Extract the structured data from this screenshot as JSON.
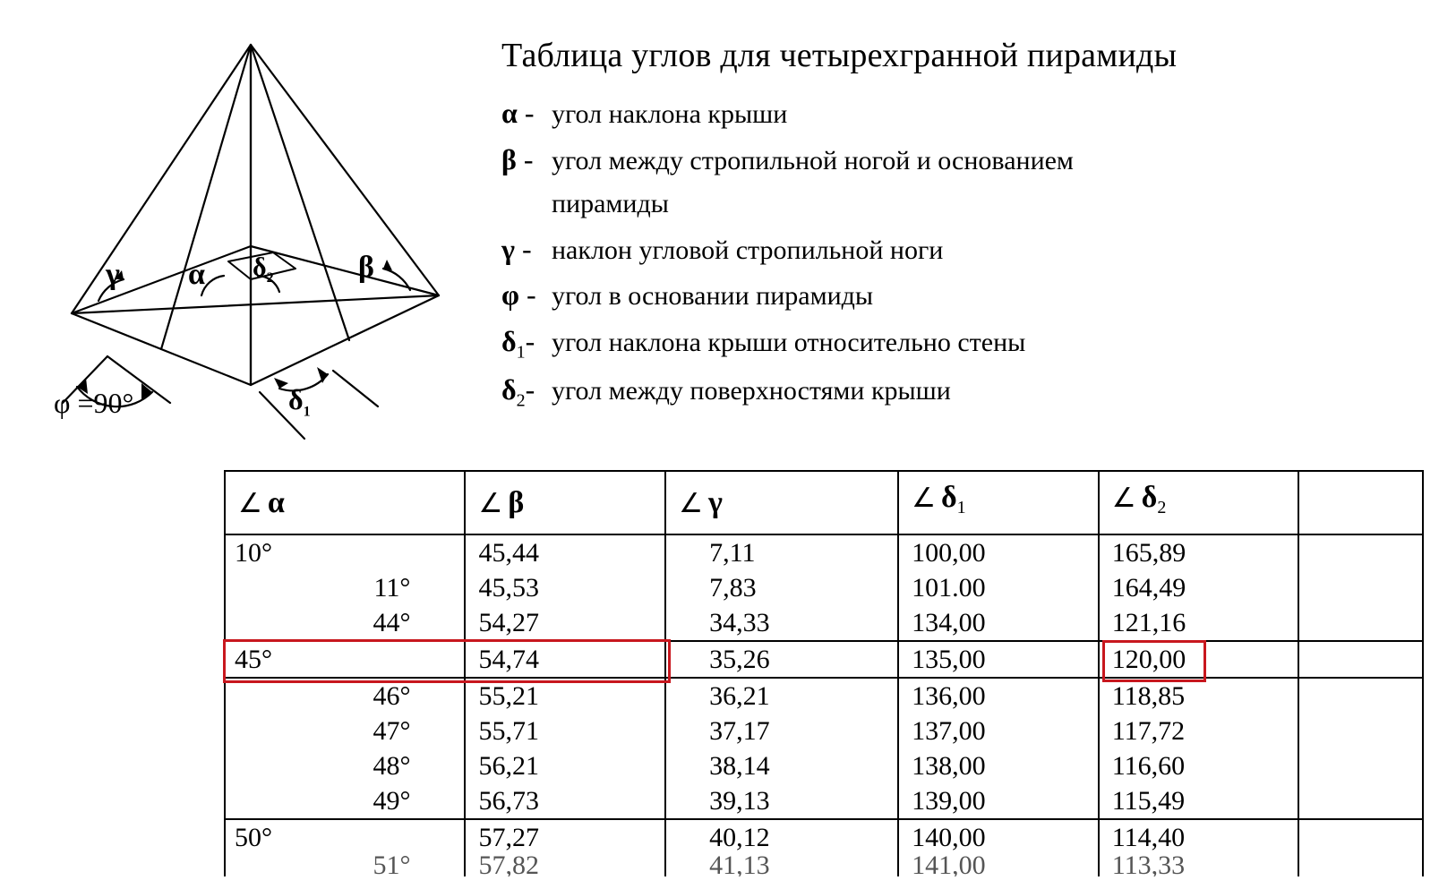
{
  "title": "Таблица углов для четырехгранной пирамиды",
  "legend": {
    "alpha": "угол наклона крыши",
    "beta1": "угол между стропильной ногой и основанием",
    "beta2": "пирамиды",
    "gamma": "наклон угловой стропильной ноги",
    "phi": "угол в основании пирамиды",
    "d1": "угол наклона крыши относительно стены",
    "d2": "угол между поверхностями крыши"
  },
  "symbols": {
    "alpha": "α",
    "beta": "β",
    "gamma": "γ",
    "phi": "φ",
    "delta": "δ",
    "angle": "∠"
  },
  "diagram": {
    "phi_label": "φ =90°",
    "labels": {
      "gamma": "γ",
      "alpha": "α",
      "d2": "δ",
      "beta": "β",
      "d1": "δ"
    }
  },
  "table": {
    "headers": [
      "α",
      "β",
      "γ",
      "δ₁",
      "δ₂"
    ],
    "rows": [
      {
        "a": "10°",
        "aAlign": "left",
        "b": "45,44",
        "c": "7,11",
        "d1": "100,00",
        "d2": "165,89",
        "ruleTop": true
      },
      {
        "a": "11°",
        "aAlign": "right",
        "b": "45,53",
        "c": "7,83",
        "d1": "101.00",
        "d2": "164,49"
      },
      {
        "a": "44°",
        "aAlign": "right",
        "b": "54,27",
        "c": "34,33",
        "d1": "134,00",
        "d2": "121,16"
      },
      {
        "a": "45°",
        "aAlign": "left",
        "b": "54,74",
        "c": "35,26",
        "d1": "135,00",
        "d2": "120,00",
        "ruleTop": true,
        "ruleBottom": true,
        "highlight": true
      },
      {
        "a": "46°",
        "aAlign": "right",
        "b": "55,21",
        "c": "36,21",
        "d1": "136,00",
        "d2": "118,85"
      },
      {
        "a": "47°",
        "aAlign": "right",
        "b": "55,71",
        "c": "37,17",
        "d1": "137,00",
        "d2": "117,72"
      },
      {
        "a": "48°",
        "aAlign": "right",
        "b": "56,21",
        "c": "38,14",
        "d1": "138,00",
        "d2": "116,60"
      },
      {
        "a": "49°",
        "aAlign": "right",
        "b": "56,73",
        "c": "39,13",
        "d1": "139,00",
        "d2": "115,49"
      },
      {
        "a": "50°",
        "aAlign": "left",
        "b": "57,27",
        "c": "40,12",
        "d1": "140,00",
        "d2": "114,40",
        "ruleTop": true
      },
      {
        "a": "51°",
        "aAlign": "right",
        "b": "57,82",
        "c": "41,13",
        "d1": "141,00",
        "d2": "113,33",
        "cut": true,
        "faded": true
      }
    ]
  },
  "styling": {
    "highlight_color": "#c8171e",
    "border_color": "#000000",
    "bg": "#ffffff",
    "font_body": "Georgia / Times New Roman",
    "font_size_title": 38,
    "font_size_legend": 30,
    "font_size_table": 30,
    "diagram_stroke_width": 2
  }
}
